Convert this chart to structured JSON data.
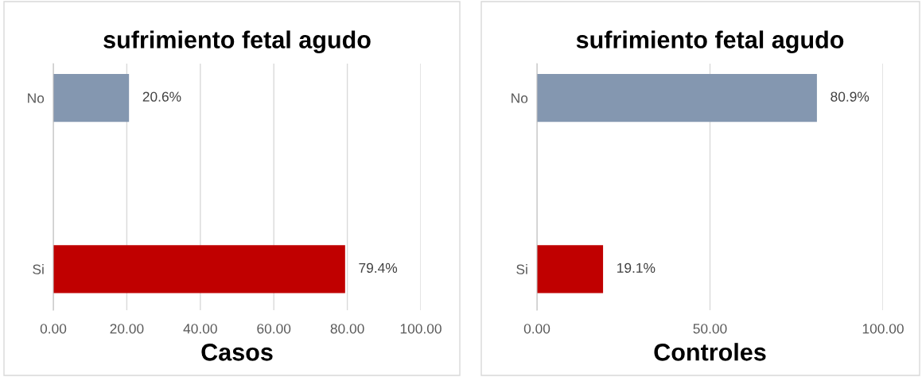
{
  "chart_data": [
    {
      "type": "bar",
      "orientation": "horizontal",
      "title": "sufrimiento fetal agudo",
      "xlabel": "Casos",
      "categories": [
        "No",
        "Si"
      ],
      "values": [
        20.6,
        79.4
      ],
      "colors": [
        "#8497b0",
        "#c00000"
      ],
      "value_labels": [
        "20.6%",
        "79.4%"
      ],
      "xlim": [
        0,
        100
      ],
      "xticks": [
        {
          "value": 0,
          "label": "0.00"
        },
        {
          "value": 20,
          "label": "20.00"
        },
        {
          "value": 40,
          "label": "40.00"
        },
        {
          "value": 60,
          "label": "60.00"
        },
        {
          "value": 80,
          "label": "80.00"
        },
        {
          "value": 100,
          "label": "100.00"
        }
      ],
      "grid": "x",
      "legend": false
    },
    {
      "type": "bar",
      "orientation": "horizontal",
      "title": "sufrimiento fetal agudo",
      "xlabel": "Controles",
      "categories": [
        "No",
        "Si"
      ],
      "values": [
        80.9,
        19.1
      ],
      "colors": [
        "#8497b0",
        "#c00000"
      ],
      "value_labels": [
        "80.9%",
        "19.1%"
      ],
      "xlim": [
        0,
        100
      ],
      "xticks": [
        {
          "value": 0,
          "label": "0.00"
        },
        {
          "value": 50,
          "label": "50.00"
        },
        {
          "value": 100,
          "label": "100.00"
        }
      ],
      "grid": "x",
      "legend": false
    }
  ]
}
